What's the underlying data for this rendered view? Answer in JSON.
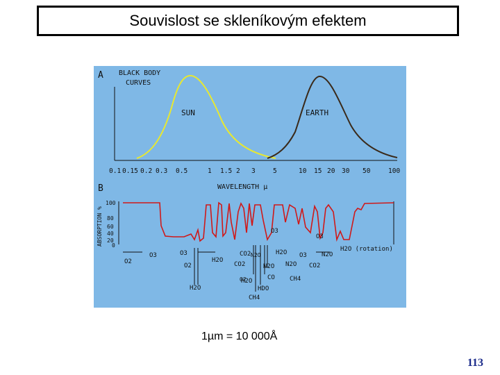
{
  "slide": {
    "title": "Souvislost se skleníkovým efektem",
    "caption": "1µm = 10 000Å",
    "page_number": "113"
  },
  "colors": {
    "panel_bg": "#7fb8e6",
    "sun_curve": "#e8e830",
    "earth_curve": "#3a2a1a",
    "absorption_curve": "#d01818"
  },
  "panel_a": {
    "letter": "A",
    "title_line1": "BLACK BODY",
    "title_line2": "CURVES",
    "sun_label": "SUN",
    "earth_label": "EARTH",
    "xlabel": "WAVELENGTH µ",
    "xticks": [
      "0.1",
      "0.15",
      "0.2",
      "0.3",
      "0.5",
      "1",
      "1.5",
      "2",
      "3",
      "5",
      "10",
      "15",
      "20",
      "30",
      "50",
      "100"
    ]
  },
  "panel_b": {
    "letter": "B",
    "ylabel": "ABSORPTION %",
    "yticks": [
      "100",
      "80",
      "60",
      "40",
      "20",
      "0"
    ],
    "gases": [
      "O2",
      "O3",
      "O2",
      "O3",
      "H2O",
      "H2O",
      "CO2",
      "CO2",
      "H2O",
      "HDO",
      "CH4",
      "N2O",
      "CO",
      "H2O",
      "N2O",
      "O3",
      "CH4",
      "O3",
      "N2O",
      "CO2",
      "H2O (rotation)",
      "N2O",
      "O2",
      "O3"
    ]
  }
}
